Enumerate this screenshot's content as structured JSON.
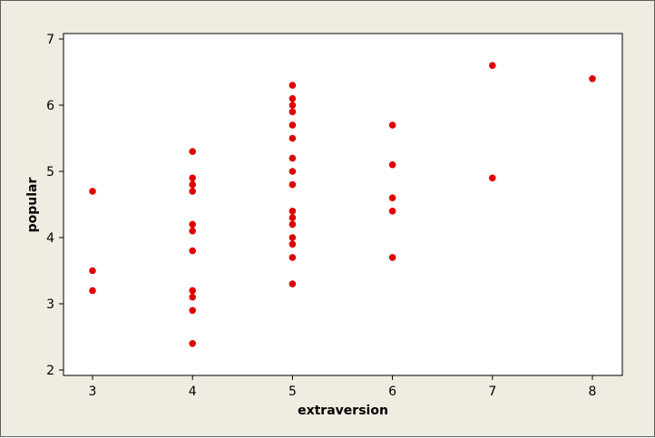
{
  "chart_data": {
    "type": "scatter",
    "xlabel": "extraversion",
    "ylabel": "popular",
    "xlim": [
      2.7,
      8.3
    ],
    "ylim": [
      2,
      7
    ],
    "xticks": [
      3,
      4,
      5,
      6,
      7,
      8
    ],
    "yticks": [
      2,
      3,
      4,
      5,
      6,
      7
    ],
    "grid": false,
    "legend": "none",
    "marker_color": "#e00000",
    "points": [
      {
        "x": 3,
        "y": 4.7
      },
      {
        "x": 3,
        "y": 3.5
      },
      {
        "x": 3,
        "y": 3.2
      },
      {
        "x": 4,
        "y": 5.3
      },
      {
        "x": 4,
        "y": 4.9
      },
      {
        "x": 4,
        "y": 4.8
      },
      {
        "x": 4,
        "y": 4.7
      },
      {
        "x": 4,
        "y": 4.2
      },
      {
        "x": 4,
        "y": 4.1
      },
      {
        "x": 4,
        "y": 3.8
      },
      {
        "x": 4,
        "y": 3.2
      },
      {
        "x": 4,
        "y": 3.1
      },
      {
        "x": 4,
        "y": 2.9
      },
      {
        "x": 4,
        "y": 2.4
      },
      {
        "x": 5,
        "y": 6.3
      },
      {
        "x": 5,
        "y": 6.1
      },
      {
        "x": 5,
        "y": 6.0
      },
      {
        "x": 5,
        "y": 5.9
      },
      {
        "x": 5,
        "y": 5.7
      },
      {
        "x": 5,
        "y": 5.5
      },
      {
        "x": 5,
        "y": 5.2
      },
      {
        "x": 5,
        "y": 5.0
      },
      {
        "x": 5,
        "y": 4.8
      },
      {
        "x": 5,
        "y": 4.4
      },
      {
        "x": 5,
        "y": 4.3
      },
      {
        "x": 5,
        "y": 4.2
      },
      {
        "x": 5,
        "y": 4.0
      },
      {
        "x": 5,
        "y": 3.9
      },
      {
        "x": 5,
        "y": 3.7
      },
      {
        "x": 5,
        "y": 3.3
      },
      {
        "x": 6,
        "y": 5.7
      },
      {
        "x": 6,
        "y": 5.1
      },
      {
        "x": 6,
        "y": 4.6
      },
      {
        "x": 6,
        "y": 4.4
      },
      {
        "x": 6,
        "y": 3.7
      },
      {
        "x": 7,
        "y": 6.6
      },
      {
        "x": 7,
        "y": 4.9
      },
      {
        "x": 8,
        "y": 6.4
      }
    ]
  }
}
